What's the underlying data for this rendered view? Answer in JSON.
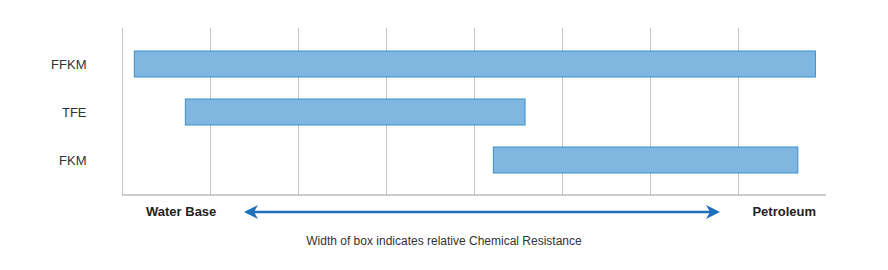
{
  "chart_data": {
    "type": "bar",
    "orientation": "horizontal",
    "categories": [
      "FFKM",
      "TFE",
      "FKM"
    ],
    "values": [
      [
        0.14,
        7.88
      ],
      [
        0.72,
        4.58
      ],
      [
        4.22,
        7.68
      ]
    ],
    "color": "#7fb7e1",
    "xlim": [
      0,
      8
    ],
    "xticks": [
      1,
      2,
      3,
      4,
      5,
      6,
      7
    ],
    "grid": true,
    "tick_labels": "y",
    "annotations": [
      "Water Base",
      "Petroleum"
    ],
    "caption": "Width of box indicates relative Chemical Resistance"
  }
}
